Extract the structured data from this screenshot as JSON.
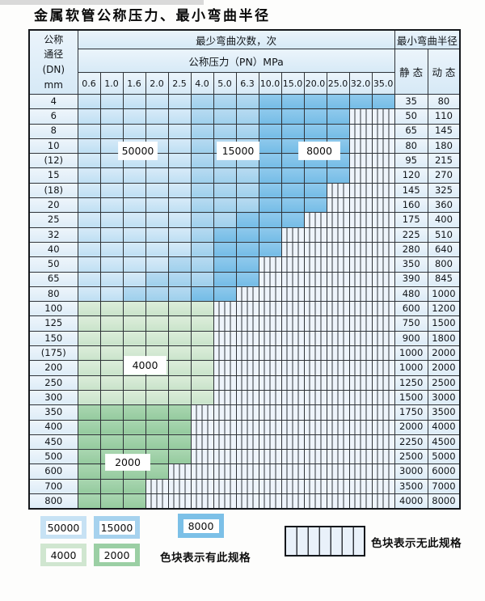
{
  "page": {
    "title": "金属软管公称压力、最小弯曲半径"
  },
  "table": {
    "header": {
      "dn_lines": [
        "公称",
        "通径",
        "(DN)",
        "mm"
      ],
      "cycles_title": "最少弯曲次数，次",
      "pressure_title": "公称压力（PN）MPa",
      "radius_title": "最小弯曲半径",
      "static_label": "静 态",
      "dynamic_label": "动 态",
      "pressures": [
        "0.6",
        "1.0",
        "1.6",
        "2.0",
        "2.5",
        "4.0",
        "5.0",
        "6.3",
        "10.0",
        "15.0",
        "20.0",
        "25.0",
        "32.0",
        "35.0"
      ]
    },
    "cell_code_map": {
      "L": "50000",
      "M": "15000",
      "D": "8000",
      "g": "4000",
      "G": "2000",
      "x": "no-spec-striped"
    },
    "overlays": {
      "b50000": "50000",
      "b15000": "15000",
      "b8000": "8000",
      "g4000": "4000",
      "g2000": "2000"
    },
    "rows": [
      {
        "dn": "4",
        "cells": "LLLLLMMMDDDDDD",
        "static": "35",
        "dynamic": "80"
      },
      {
        "dn": "6",
        "cells": "LLLLLMMMDDDDxx",
        "static": "50",
        "dynamic": "110"
      },
      {
        "dn": "8",
        "cells": "LLLLLMMMDDDDxx",
        "static": "65",
        "dynamic": "145"
      },
      {
        "dn": "10",
        "cells": "LLLLLMMMDDDDxx",
        "static": "80",
        "dynamic": "180"
      },
      {
        "dn": "(12)",
        "cells": "LLLLLMMMDDDDxx",
        "static": "95",
        "dynamic": "215"
      },
      {
        "dn": "15",
        "cells": "LLLLLMMMDDDDxx",
        "static": "120",
        "dynamic": "270"
      },
      {
        "dn": "(18)",
        "cells": "LLLLLMMMDDDxxx",
        "static": "145",
        "dynamic": "325"
      },
      {
        "dn": "20",
        "cells": "LLLLLMMMDDDxxx",
        "static": "160",
        "dynamic": "360"
      },
      {
        "dn": "25",
        "cells": "LLLLLMMDDDxxxx",
        "static": "175",
        "dynamic": "400"
      },
      {
        "dn": "32",
        "cells": "LLLLLMDDDxxxxx",
        "static": "225",
        "dynamic": "510"
      },
      {
        "dn": "40",
        "cells": "LLLLLMDDDxxxxx",
        "static": "280",
        "dynamic": "640"
      },
      {
        "dn": "50",
        "cells": "LLLLMMDDxxxxxx",
        "static": "350",
        "dynamic": "800"
      },
      {
        "dn": "65",
        "cells": "LLLMMMDDxxxxxx",
        "static": "390",
        "dynamic": "845"
      },
      {
        "dn": "80",
        "cells": "LLMMMDDxxxxxxx",
        "static": "480",
        "dynamic": "1000"
      },
      {
        "dn": "100",
        "cells": "ggggggxxxxxxxx",
        "static": "600",
        "dynamic": "1200"
      },
      {
        "dn": "125",
        "cells": "ggggggxxxxxxxx",
        "static": "750",
        "dynamic": "1500"
      },
      {
        "dn": "150",
        "cells": "ggggggxxxxxxxx",
        "static": "900",
        "dynamic": "1800"
      },
      {
        "dn": "(175)",
        "cells": "ggggggxxxxxxxx",
        "static": "1000",
        "dynamic": "2000"
      },
      {
        "dn": "200",
        "cells": "ggggggxxxxxxxx",
        "static": "1000",
        "dynamic": "2000"
      },
      {
        "dn": "250",
        "cells": "ggggggxxxxxxxx",
        "static": "1250",
        "dynamic": "2500"
      },
      {
        "dn": "300",
        "cells": "ggggggxxxxxxxx",
        "static": "1500",
        "dynamic": "3000"
      },
      {
        "dn": "350",
        "cells": "GGGGGxxxxxxxxx",
        "static": "1750",
        "dynamic": "3500"
      },
      {
        "dn": "400",
        "cells": "GGGGGxxxxxxxxx",
        "static": "2000",
        "dynamic": "4000"
      },
      {
        "dn": "450",
        "cells": "GGGGGxxxxxxxxx",
        "static": "2250",
        "dynamic": "4500"
      },
      {
        "dn": "500",
        "cells": "GGGGGxxxxxxxxx",
        "static": "2500",
        "dynamic": "5000"
      },
      {
        "dn": "600",
        "cells": "GGGGxxxxxxxxxx",
        "static": "3000",
        "dynamic": "6000"
      },
      {
        "dn": "700",
        "cells": "GGGxxxxxxxxxxx",
        "static": "3500",
        "dynamic": "7000"
      },
      {
        "dn": "800",
        "cells": "GGGxxxxxxxxxxx",
        "static": "4000",
        "dynamic": "8000"
      }
    ]
  },
  "legend": {
    "swatches": [
      {
        "value": "50000",
        "color": "#c7e2f4"
      },
      {
        "value": "15000",
        "color": "#a6d2ee"
      },
      {
        "value": "8000",
        "color": "#7cc0e7"
      },
      {
        "value": "4000",
        "color": "#d0e6d0"
      },
      {
        "value": "2000",
        "color": "#9bcfa4"
      }
    ],
    "has_spec_text": "色块表示有此规格",
    "no_spec_text": "色块表示无此规格"
  },
  "colors": {
    "blue_50000": "#c7e2f4",
    "blue_15000": "#a6d2ee",
    "blue_8000": "#7cc0e7",
    "green_4000": "#d0e6d0",
    "green_2000": "#9bcfa4",
    "striped_bg": "#eef4fb",
    "grid_line": "#2f3338"
  }
}
